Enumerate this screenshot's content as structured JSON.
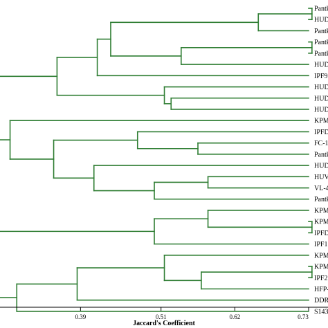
{
  "chart_data": {
    "type": "dendrogram",
    "xlabel": "Jaccard's Coefficient",
    "x_ticks": [
      0.39,
      0.51,
      0.62,
      0.73
    ],
    "xlim": [
      0.27,
      0.73
    ],
    "leaves": [
      "Pantk",
      "HUD",
      "Pantk",
      "Pantk",
      "Pantk",
      "HUD",
      "IPF9",
      "HUD",
      "HUD",
      "HUD",
      "KPM",
      "IPFD",
      "FC-1",
      "Pantk",
      "HUD",
      "HUV",
      "VL-4",
      "Pantk",
      "KPM",
      "KPM",
      "IPFD",
      "IPF1",
      "KPM",
      "KPM",
      "IPF2",
      "HFP-",
      "DDR",
      "S143"
    ],
    "merges": [
      {
        "id": "n1",
        "children": [
          "L0",
          "L1"
        ],
        "height": 0.735
      },
      {
        "id": "n2",
        "children": [
          "n1",
          "L2"
        ],
        "height": 0.655
      },
      {
        "id": "n3",
        "children": [
          "L3",
          "L4"
        ],
        "height": 0.735
      },
      {
        "id": "n4",
        "children": [
          "n3",
          "L5"
        ],
        "height": 0.54
      },
      {
        "id": "n5",
        "children": [
          "n2",
          "n4"
        ],
        "height": 0.435
      },
      {
        "id": "n6",
        "children": [
          "n5",
          "L6"
        ],
        "height": 0.415
      },
      {
        "id": "n7",
        "children": [
          "L8",
          "L9"
        ],
        "height": 0.525
      },
      {
        "id": "n8",
        "children": [
          "L7",
          "n7"
        ],
        "height": 0.515
      },
      {
        "id": "n9",
        "children": [
          "n6",
          "n8"
        ],
        "height": 0.355
      },
      {
        "id": "n10",
        "children": [
          "L12",
          "L13"
        ],
        "height": 0.565
      },
      {
        "id": "n11",
        "children": [
          "L11",
          "n10"
        ],
        "height": 0.475
      },
      {
        "id": "n12",
        "children": [
          "L15",
          "L16"
        ],
        "height": 0.58
      },
      {
        "id": "n13",
        "children": [
          "n12",
          "L17"
        ],
        "height": 0.5
      },
      {
        "id": "n14",
        "children": [
          "L14",
          "n13"
        ],
        "height": 0.41
      },
      {
        "id": "n15",
        "children": [
          "n11",
          "n14"
        ],
        "height": 0.35
      },
      {
        "id": "n16",
        "children": [
          "L10",
          "n15"
        ],
        "height": 0.285
      },
      {
        "id": "n17",
        "children": [
          "n9",
          "n16"
        ],
        "height": 0.262
      },
      {
        "id": "n18",
        "children": [
          "L19",
          "L20"
        ],
        "height": 0.735
      },
      {
        "id": "n19",
        "children": [
          "L18",
          "n18"
        ],
        "height": 0.58
      },
      {
        "id": "n20",
        "children": [
          "n19",
          "L21"
        ],
        "height": 0.5
      },
      {
        "id": "n21",
        "children": [
          "L23",
          "L24"
        ],
        "height": 0.735
      },
      {
        "id": "n22",
        "children": [
          "n21",
          "L25"
        ],
        "height": 0.57
      },
      {
        "id": "n23",
        "children": [
          "L22",
          "n22"
        ],
        "height": 0.515
      },
      {
        "id": "n24",
        "children": [
          "n23",
          "L26"
        ],
        "height": 0.385
      },
      {
        "id": "n25",
        "children": [
          "n24",
          "L27"
        ],
        "height": 0.295
      }
    ],
    "root_stubs": [
      {
        "node": "n17",
        "to": 0.25
      },
      {
        "node": "n20",
        "to": 0.25
      },
      {
        "node": "n25",
        "to": 0.25
      }
    ]
  }
}
